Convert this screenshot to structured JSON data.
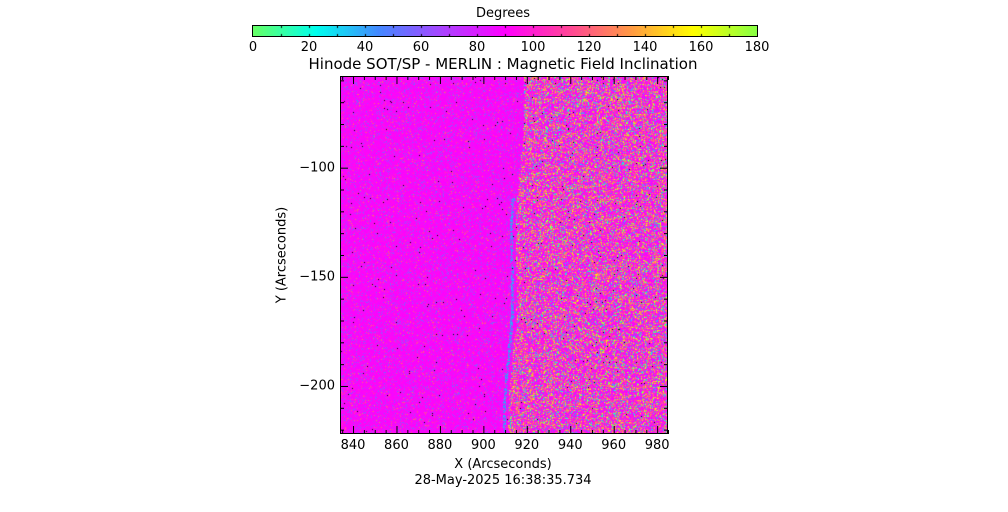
{
  "chart_data": {
    "type": "heatmap",
    "title": "Hinode SOT/SP - MERLIN : Magnetic Field Inclination",
    "xlabel": "X (Arcseconds)",
    "ylabel": "Y (Arcseconds)",
    "xlim": [
      834,
      985
    ],
    "ylim": [
      -222,
      -58
    ],
    "xticks": [
      840,
      860,
      880,
      900,
      920,
      940,
      960,
      980
    ],
    "yticks": [
      -100,
      -150,
      -200
    ],
    "colorbar": {
      "label": "Degrees",
      "range": [
        0,
        180
      ],
      "ticks": [
        0,
        20,
        40,
        60,
        80,
        100,
        120,
        140,
        160,
        180
      ],
      "colors": [
        "#66ff66",
        "#00ffee",
        "#4488ff",
        "#aa44ff",
        "#ff00ff",
        "#ff4499",
        "#ff9944",
        "#ffff00",
        "#88ff44"
      ]
    },
    "timestamp": "28-May-2025 16:38:35.734",
    "description_regions": {
      "noisy_boundary_x": 922,
      "dominant_value": 90
    }
  }
}
